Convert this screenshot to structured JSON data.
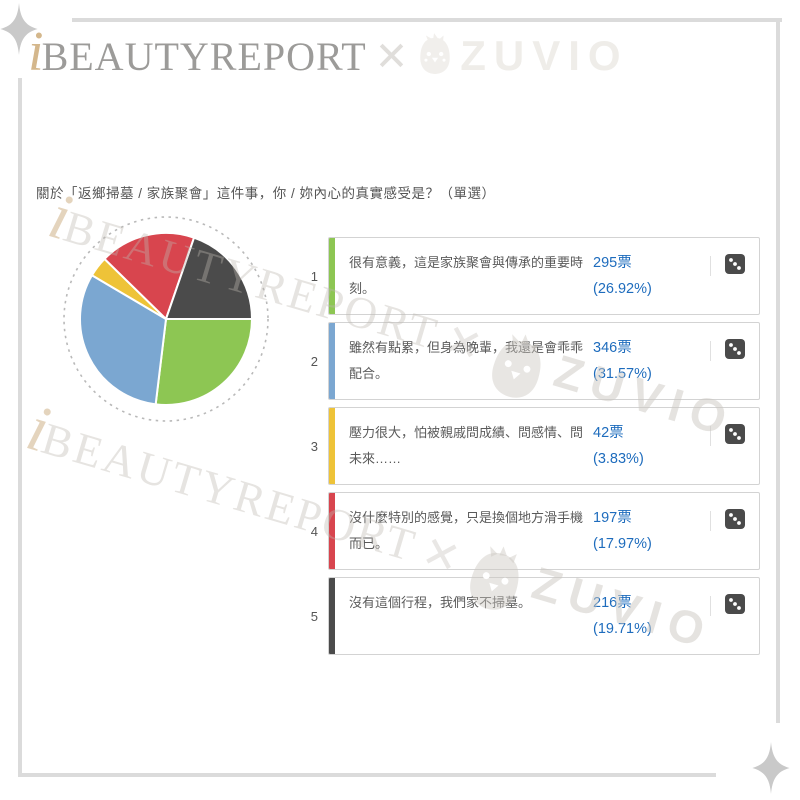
{
  "brand": {
    "i": "i",
    "name": "BEAUTYREPORT",
    "x_symbol": "✕",
    "partner": "ZUVIO",
    "mascot": "zuvio-chick-icon"
  },
  "question": {
    "title": "關於「返鄉掃墓 / 家族聚會」這件事，你 / 妳內心的真實感受是？（單選）"
  },
  "chart_data": {
    "type": "pie",
    "title": "",
    "labels": [
      "很有意義，這是家族聚會與傳承的重要時刻。",
      "雖然有點累，但身為晚輩，我還是會乖乖配合。",
      "壓力很大，怕被親戚問成績、問感情、問未來……",
      "沒什麼特別的感覺，只是換個地方滑手機而已。",
      "沒有這個行程，我們家不掃墓。"
    ],
    "values": [
      26.92,
      31.57,
      3.83,
      17.97,
      19.71
    ],
    "votes": [
      295,
      346,
      42,
      197,
      216
    ],
    "colors": [
      "#8dc653",
      "#7ba7d1",
      "#eec338",
      "#d8454e",
      "#4b4b4b"
    ],
    "start_angle_deg": 0,
    "direction": "clockwise",
    "legend_position": "none",
    "outer_dotted_ring": true
  },
  "options": [
    {
      "index": "1",
      "text": "很有意義，這是家族聚會與傳承的重要時刻。",
      "votes_label": "295票",
      "percent_label": "(26.92%)",
      "color": "#8dc653"
    },
    {
      "index": "2",
      "text": "雖然有點累，但身為晚輩，我還是會乖乖配合。",
      "votes_label": "346票",
      "percent_label": "(31.57%)",
      "color": "#7ba7d1"
    },
    {
      "index": "3",
      "text": "壓力很大，怕被親戚問成績、問感情、問未來……",
      "votes_label": "42票",
      "percent_label": "(3.83%)",
      "color": "#eec338"
    },
    {
      "index": "4",
      "text": "沒什麼特別的感覺，只是換個地方滑手機而已。",
      "votes_label": "197票",
      "percent_label": "(17.97%)",
      "color": "#d8454e"
    },
    {
      "index": "5",
      "text": "沒有這個行程，我們家不掃墓。",
      "votes_label": "216票",
      "percent_label": "(19.71%)",
      "color": "#4b4b4b"
    }
  ],
  "ui_colors": {
    "vote_text": "#1e6cbd",
    "option_text": "#5a5a5a",
    "card_border": "#d3d3d3",
    "frame_line": "#dbdbdb",
    "dice_icon": "#4a4a4a",
    "dotted_ring": "#b9b9b9"
  }
}
